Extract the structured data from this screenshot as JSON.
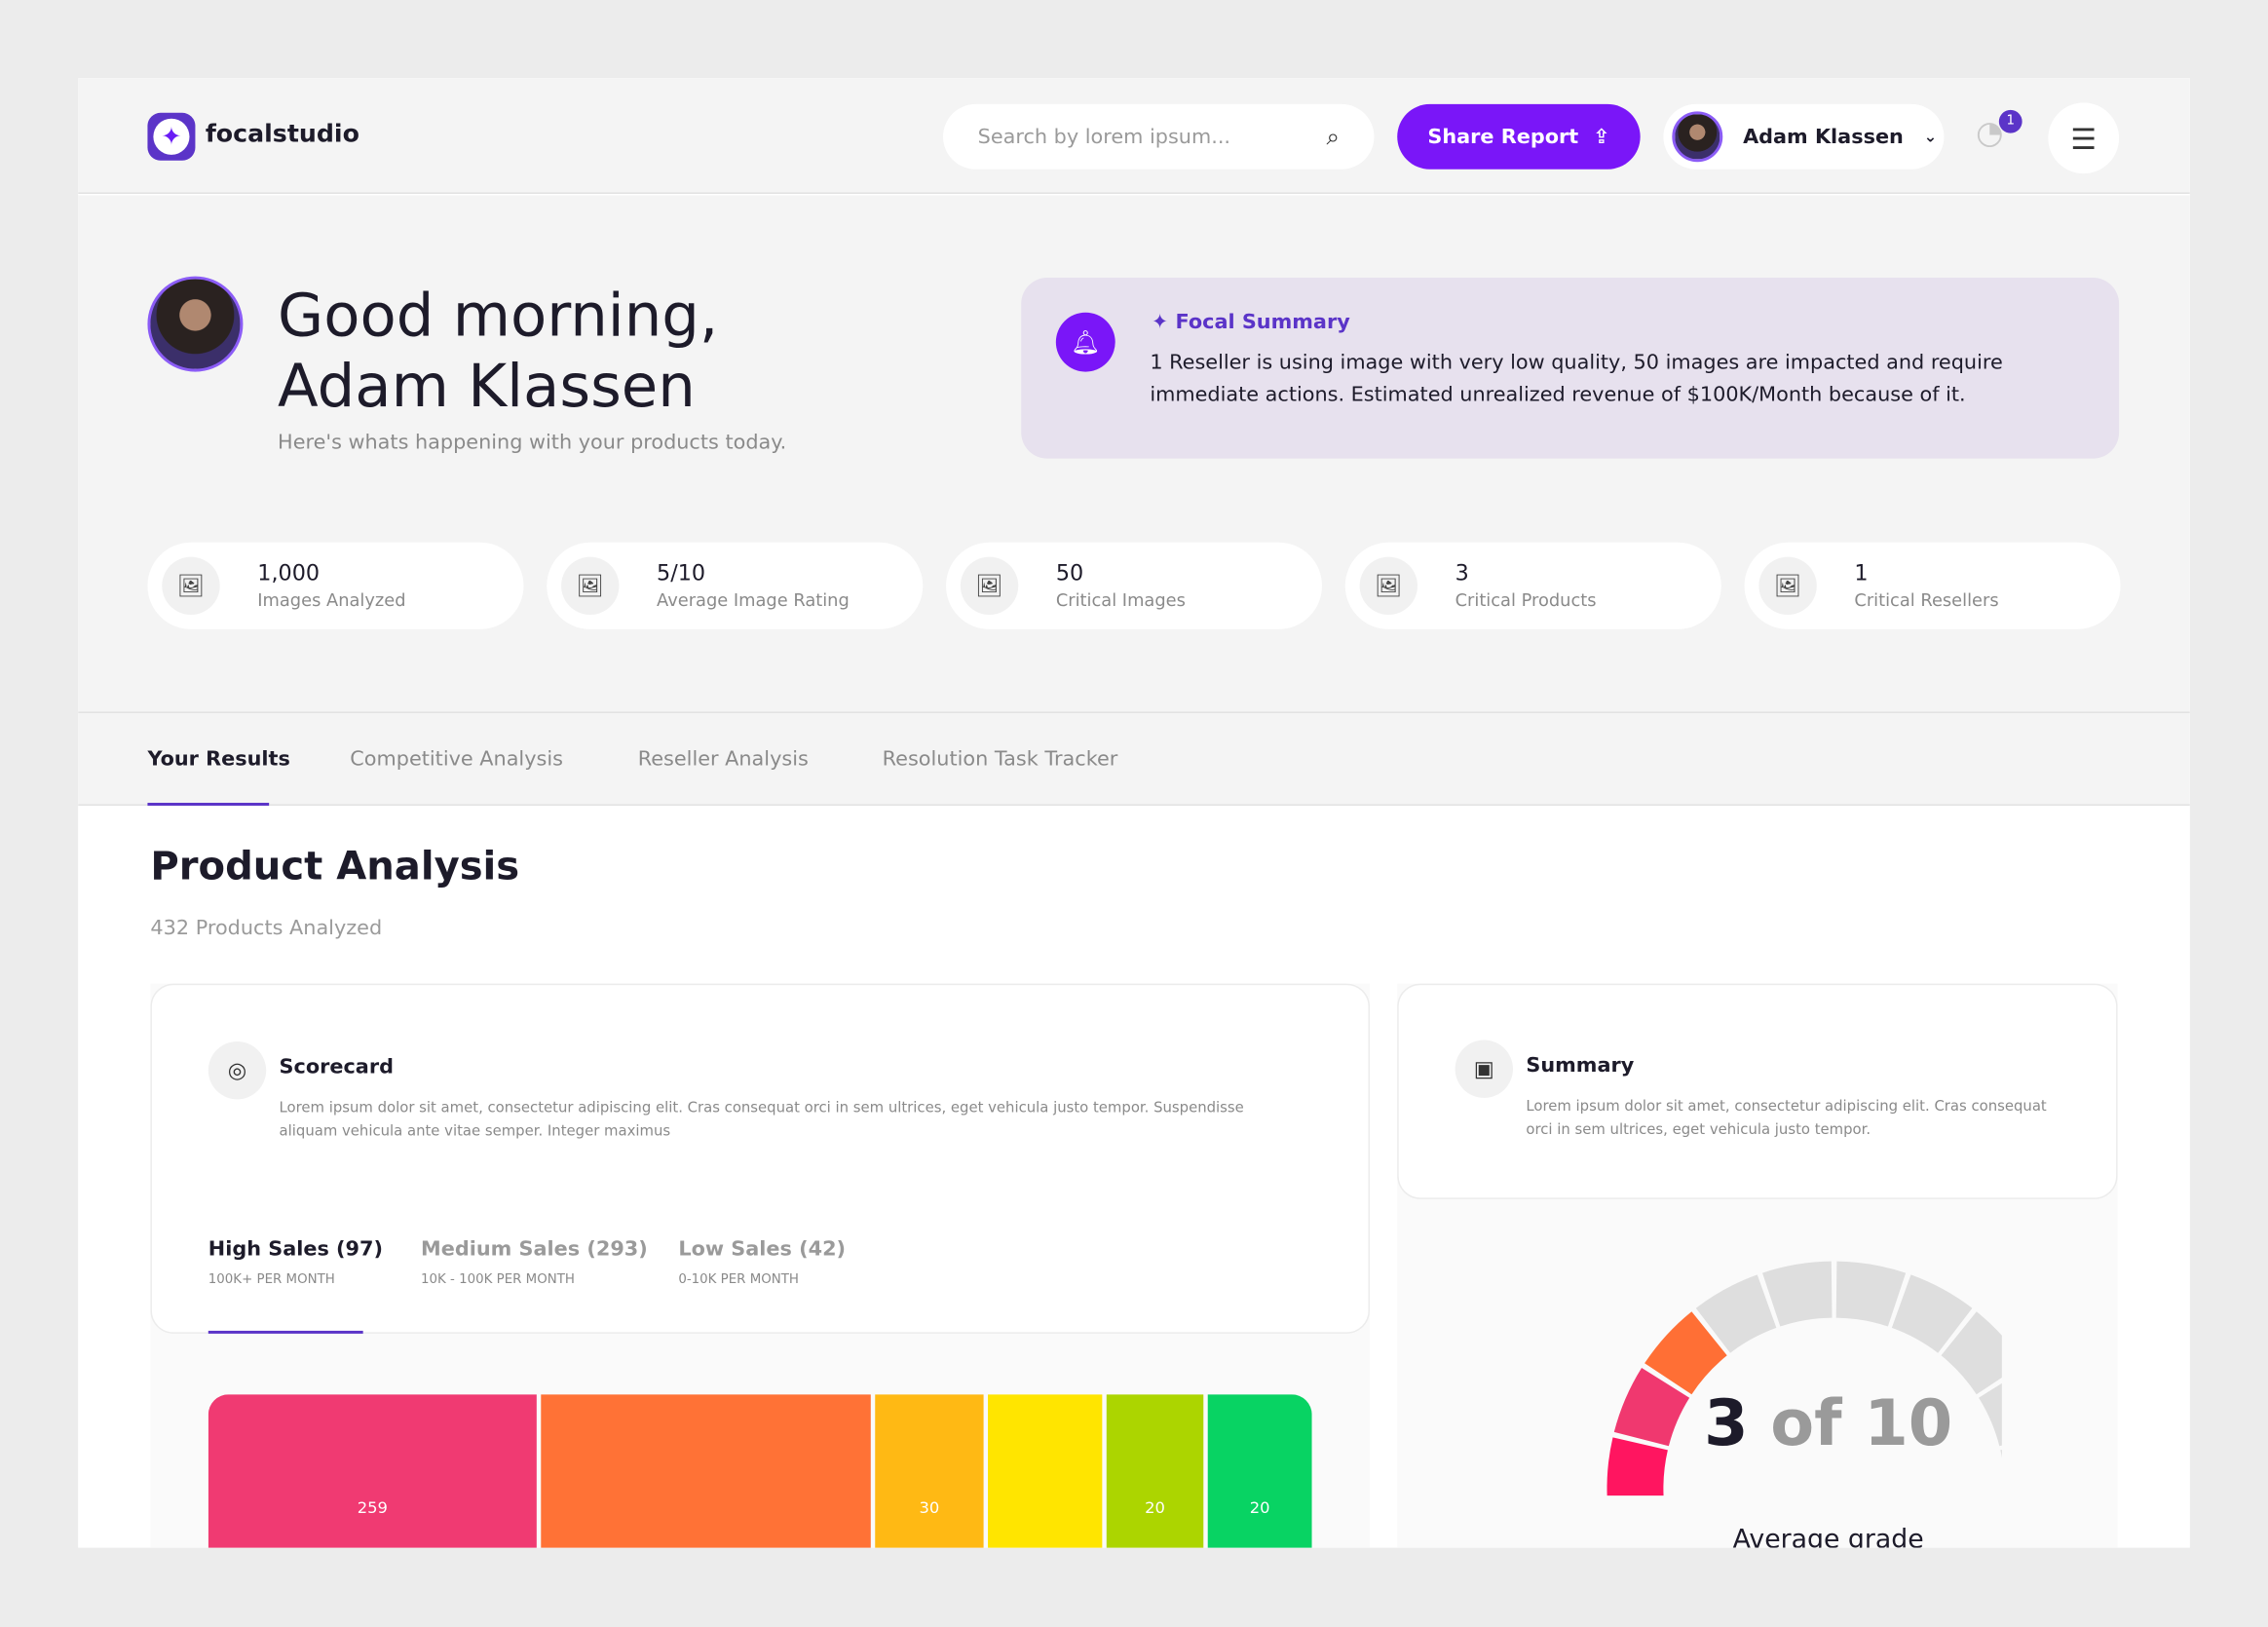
{
  "header": {
    "logo_text": "focalstudio",
    "search_placeholder": "Search by lorem ipsum...",
    "share_label": "Share Report",
    "user_name": "Adam Klassen",
    "notification_count": "1"
  },
  "hero": {
    "greeting_line1": "Good morning,",
    "greeting_line2": "Adam Klassen",
    "subtitle": "Here's whats happening with your products today."
  },
  "focal_summary": {
    "title": "Focal Summary",
    "body": "1 Reseller is using image with very low quality, 50 images are impacted and require immediate actions. Estimated unrealized revenue of $100K/Month because of it."
  },
  "stats": [
    {
      "value": "1,000",
      "label": "Images Analyzed"
    },
    {
      "value": "5/10",
      "label": "Average Image Rating"
    },
    {
      "value": "50",
      "label": "Critical Images"
    },
    {
      "value": "3",
      "label": "Critical Products"
    },
    {
      "value": "1",
      "label": "Critical Resellers"
    }
  ],
  "tabs": [
    {
      "label": "Your Results",
      "active": true
    },
    {
      "label": "Competitive Analysis"
    },
    {
      "label": "Reseller Analysis"
    },
    {
      "label": "Resolution Task Tracker"
    }
  ],
  "section": {
    "title": "Product Analysis",
    "count": "432 Products Analyzed"
  },
  "scorecard": {
    "title": "Scorecard",
    "desc": "Lorem ipsum dolor sit amet, consectetur adipiscing elit. Cras consequat orci in sem ultrices, eget vehicula justo tempor. Suspendisse aliquam vehicula ante vitae semper. Integer maximus",
    "sales_tabs": [
      {
        "label": "High Sales (97)",
        "sub": "100K+ PER MONTH",
        "active": true
      },
      {
        "label": "Medium Sales (293)",
        "sub": "10K - 100K PER MONTH"
      },
      {
        "label": "Low Sales (42)",
        "sub": "0-10K PER MONTH"
      }
    ],
    "segments": [
      {
        "label": "259",
        "color": "#f03a72"
      },
      {
        "label": "",
        "color": "#ff7236"
      },
      {
        "label": "30",
        "color": "#ffb914"
      },
      {
        "label": "",
        "color": "#ffe500"
      },
      {
        "label": "20",
        "color": "#acd500"
      },
      {
        "label": "20",
        "color": "#08d363"
      }
    ]
  },
  "summary": {
    "title": "Summary",
    "desc": "Lorem ipsum dolor sit amet, consectetur adipiscing elit. Cras consequat orci in sem ultrices, eget vehicula justo tempor.",
    "grade_value": "3",
    "grade_of": "of 10",
    "grade_label": "Average grade",
    "grade": 3,
    "grade_max": 10,
    "segment_colors": [
      "#ff1560",
      "#f0386f",
      "#ff6f35"
    ],
    "empty_color": "#dedede"
  }
}
